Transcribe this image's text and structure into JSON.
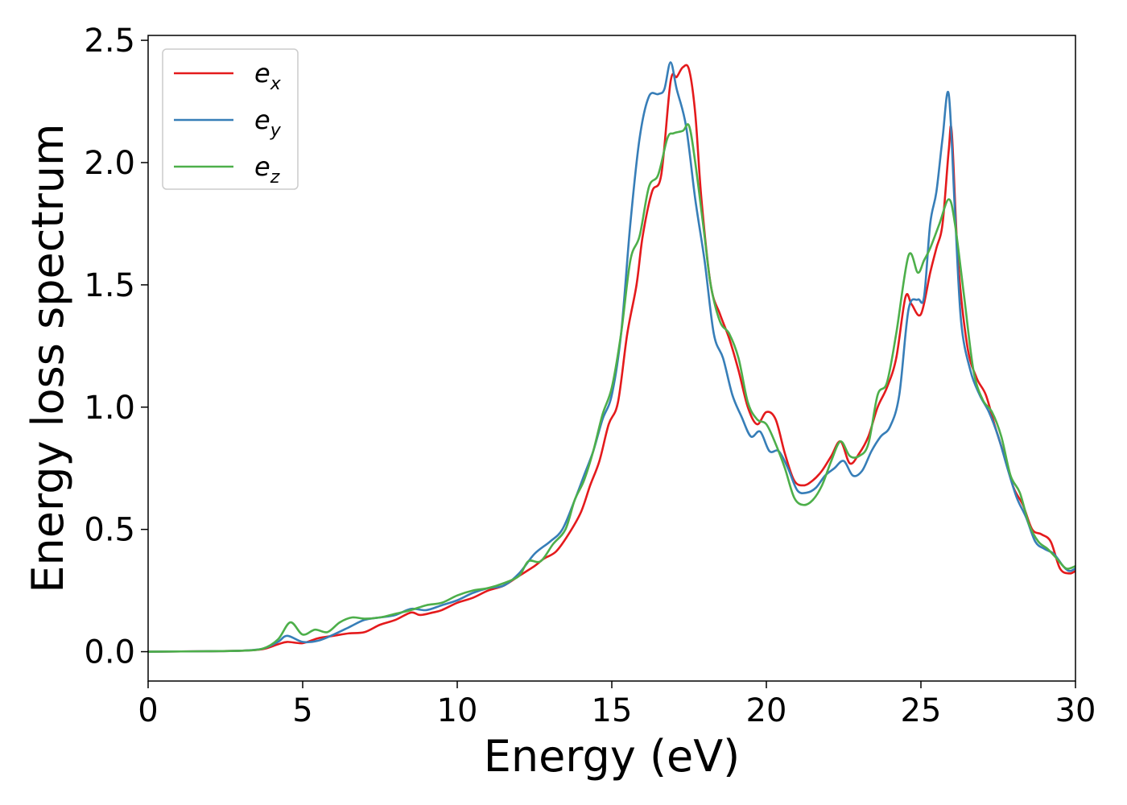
{
  "chart_data": {
    "type": "line",
    "title": "",
    "xlabel": "Energy (eV)",
    "ylabel": "Energy loss spectrum",
    "xlim": [
      0,
      30
    ],
    "ylim": [
      -0.12,
      2.52
    ],
    "xticks": [
      0,
      5,
      10,
      15,
      20,
      25,
      30
    ],
    "xtick_labels": [
      "0",
      "5",
      "10",
      "15",
      "20",
      "25",
      "30"
    ],
    "yticks": [
      0.0,
      0.5,
      1.0,
      1.5,
      2.0,
      2.5
    ],
    "ytick_labels": [
      "0.0",
      "0.5",
      "1.0",
      "1.5",
      "2.0",
      "2.5"
    ],
    "grid": false,
    "legend_position": "upper-left",
    "series": [
      {
        "name": "ex",
        "label_base": "e",
        "label_sub": "x",
        "color": "#e41a1c",
        "points": [
          [
            0,
            0
          ],
          [
            2,
            0.002
          ],
          [
            3,
            0.004
          ],
          [
            3.7,
            0.01
          ],
          [
            4.2,
            0.03
          ],
          [
            4.5,
            0.04
          ],
          [
            5,
            0.035
          ],
          [
            5.5,
            0.055
          ],
          [
            6,
            0.065
          ],
          [
            6.5,
            0.075
          ],
          [
            7,
            0.08
          ],
          [
            7.5,
            0.11
          ],
          [
            8,
            0.13
          ],
          [
            8.5,
            0.16
          ],
          [
            8.8,
            0.15
          ],
          [
            9.2,
            0.16
          ],
          [
            9.5,
            0.17
          ],
          [
            10,
            0.2
          ],
          [
            10.5,
            0.22
          ],
          [
            11,
            0.25
          ],
          [
            11.5,
            0.27
          ],
          [
            12,
            0.31
          ],
          [
            12.5,
            0.35
          ],
          [
            12.8,
            0.38
          ],
          [
            13.2,
            0.41
          ],
          [
            13.6,
            0.48
          ],
          [
            14,
            0.57
          ],
          [
            14.3,
            0.68
          ],
          [
            14.6,
            0.78
          ],
          [
            14.9,
            0.93
          ],
          [
            15.2,
            1.02
          ],
          [
            15.5,
            1.3
          ],
          [
            15.8,
            1.5
          ],
          [
            16,
            1.7
          ],
          [
            16.3,
            1.88
          ],
          [
            16.6,
            1.95
          ],
          [
            16.9,
            2.33
          ],
          [
            17.1,
            2.35
          ],
          [
            17.3,
            2.39
          ],
          [
            17.5,
            2.38
          ],
          [
            17.7,
            2.2
          ],
          [
            17.9,
            1.85
          ],
          [
            18.2,
            1.5
          ],
          [
            18.5,
            1.38
          ],
          [
            18.8,
            1.28
          ],
          [
            19.1,
            1.15
          ],
          [
            19.4,
            1.0
          ],
          [
            19.7,
            0.93
          ],
          [
            20,
            0.98
          ],
          [
            20.3,
            0.95
          ],
          [
            20.6,
            0.81
          ],
          [
            20.9,
            0.7
          ],
          [
            21.2,
            0.68
          ],
          [
            21.5,
            0.7
          ],
          [
            21.8,
            0.74
          ],
          [
            22.1,
            0.8
          ],
          [
            22.4,
            0.86
          ],
          [
            22.7,
            0.77
          ],
          [
            23,
            0.81
          ],
          [
            23.3,
            0.88
          ],
          [
            23.6,
            1.0
          ],
          [
            23.9,
            1.08
          ],
          [
            24.2,
            1.2
          ],
          [
            24.5,
            1.45
          ],
          [
            24.7,
            1.42
          ],
          [
            25,
            1.38
          ],
          [
            25.3,
            1.55
          ],
          [
            25.5,
            1.65
          ],
          [
            25.7,
            1.75
          ],
          [
            25.9,
            2.05
          ],
          [
            26,
            2.12
          ],
          [
            26.2,
            1.6
          ],
          [
            26.5,
            1.25
          ],
          [
            26.8,
            1.12
          ],
          [
            27.1,
            1.05
          ],
          [
            27.4,
            0.92
          ],
          [
            27.7,
            0.8
          ],
          [
            28,
            0.67
          ],
          [
            28.3,
            0.6
          ],
          [
            28.6,
            0.5
          ],
          [
            28.9,
            0.48
          ],
          [
            29.2,
            0.45
          ],
          [
            29.5,
            0.34
          ],
          [
            29.8,
            0.32
          ],
          [
            30,
            0.33
          ]
        ]
      },
      {
        "name": "ey",
        "label_base": "e",
        "label_sub": "y",
        "color": "#377eb8",
        "points": [
          [
            0,
            0
          ],
          [
            2,
            0.002
          ],
          [
            3,
            0.004
          ],
          [
            3.7,
            0.012
          ],
          [
            4.2,
            0.04
          ],
          [
            4.5,
            0.065
          ],
          [
            5,
            0.04
          ],
          [
            5.5,
            0.045
          ],
          [
            6,
            0.07
          ],
          [
            6.5,
            0.1
          ],
          [
            7,
            0.13
          ],
          [
            7.5,
            0.14
          ],
          [
            8,
            0.15
          ],
          [
            8.5,
            0.175
          ],
          [
            9,
            0.17
          ],
          [
            9.5,
            0.19
          ],
          [
            10,
            0.21
          ],
          [
            10.5,
            0.24
          ],
          [
            11,
            0.26
          ],
          [
            11.5,
            0.27
          ],
          [
            12,
            0.32
          ],
          [
            12.5,
            0.4
          ],
          [
            13,
            0.45
          ],
          [
            13.4,
            0.5
          ],
          [
            13.8,
            0.62
          ],
          [
            14.1,
            0.72
          ],
          [
            14.4,
            0.82
          ],
          [
            14.7,
            0.95
          ],
          [
            15,
            1.05
          ],
          [
            15.3,
            1.3
          ],
          [
            15.6,
            1.75
          ],
          [
            15.9,
            2.1
          ],
          [
            16.2,
            2.27
          ],
          [
            16.5,
            2.28
          ],
          [
            16.7,
            2.3
          ],
          [
            16.9,
            2.41
          ],
          [
            17.1,
            2.3
          ],
          [
            17.4,
            2.15
          ],
          [
            17.7,
            1.85
          ],
          [
            18,
            1.6
          ],
          [
            18.3,
            1.3
          ],
          [
            18.6,
            1.2
          ],
          [
            18.9,
            1.05
          ],
          [
            19.2,
            0.96
          ],
          [
            19.5,
            0.88
          ],
          [
            19.8,
            0.9
          ],
          [
            20.1,
            0.82
          ],
          [
            20.4,
            0.82
          ],
          [
            20.7,
            0.75
          ],
          [
            21,
            0.66
          ],
          [
            21.3,
            0.65
          ],
          [
            21.6,
            0.67
          ],
          [
            21.9,
            0.72
          ],
          [
            22.2,
            0.75
          ],
          [
            22.5,
            0.78
          ],
          [
            22.8,
            0.72
          ],
          [
            23.1,
            0.74
          ],
          [
            23.4,
            0.82
          ],
          [
            23.7,
            0.88
          ],
          [
            24,
            0.92
          ],
          [
            24.3,
            1.05
          ],
          [
            24.6,
            1.4
          ],
          [
            24.9,
            1.44
          ],
          [
            25.1,
            1.45
          ],
          [
            25.3,
            1.75
          ],
          [
            25.5,
            1.88
          ],
          [
            25.7,
            2.1
          ],
          [
            25.9,
            2.28
          ],
          [
            26.1,
            1.8
          ],
          [
            26.3,
            1.35
          ],
          [
            26.6,
            1.15
          ],
          [
            26.9,
            1.05
          ],
          [
            27.2,
            0.98
          ],
          [
            27.5,
            0.88
          ],
          [
            27.8,
            0.75
          ],
          [
            28.1,
            0.63
          ],
          [
            28.4,
            0.55
          ],
          [
            28.7,
            0.45
          ],
          [
            29,
            0.42
          ],
          [
            29.3,
            0.4
          ],
          [
            29.6,
            0.35
          ],
          [
            29.8,
            0.33
          ],
          [
            30,
            0.34
          ]
        ]
      },
      {
        "name": "ez",
        "label_base": "e",
        "label_sub": "z",
        "color": "#4daf4a",
        "points": [
          [
            0,
            0
          ],
          [
            2,
            0.002
          ],
          [
            3,
            0.004
          ],
          [
            3.7,
            0.012
          ],
          [
            4.2,
            0.05
          ],
          [
            4.6,
            0.12
          ],
          [
            5,
            0.07
          ],
          [
            5.4,
            0.09
          ],
          [
            5.8,
            0.08
          ],
          [
            6.2,
            0.12
          ],
          [
            6.6,
            0.14
          ],
          [
            7,
            0.135
          ],
          [
            7.5,
            0.14
          ],
          [
            8,
            0.155
          ],
          [
            8.5,
            0.17
          ],
          [
            9,
            0.19
          ],
          [
            9.5,
            0.2
          ],
          [
            10,
            0.23
          ],
          [
            10.5,
            0.25
          ],
          [
            11,
            0.26
          ],
          [
            11.5,
            0.28
          ],
          [
            12,
            0.31
          ],
          [
            12.3,
            0.37
          ],
          [
            12.7,
            0.37
          ],
          [
            13.1,
            0.44
          ],
          [
            13.5,
            0.5
          ],
          [
            13.8,
            0.62
          ],
          [
            14.1,
            0.7
          ],
          [
            14.4,
            0.82
          ],
          [
            14.7,
            0.97
          ],
          [
            15,
            1.08
          ],
          [
            15.3,
            1.3
          ],
          [
            15.6,
            1.6
          ],
          [
            15.9,
            1.7
          ],
          [
            16.2,
            1.9
          ],
          [
            16.5,
            1.95
          ],
          [
            16.8,
            2.1
          ],
          [
            17,
            2.12
          ],
          [
            17.3,
            2.13
          ],
          [
            17.5,
            2.15
          ],
          [
            17.7,
            2.0
          ],
          [
            18,
            1.7
          ],
          [
            18.2,
            1.5
          ],
          [
            18.5,
            1.35
          ],
          [
            18.8,
            1.3
          ],
          [
            19.1,
            1.2
          ],
          [
            19.4,
            1.02
          ],
          [
            19.7,
            0.95
          ],
          [
            20,
            0.93
          ],
          [
            20.3,
            0.85
          ],
          [
            20.6,
            0.75
          ],
          [
            20.9,
            0.63
          ],
          [
            21.2,
            0.6
          ],
          [
            21.5,
            0.62
          ],
          [
            21.8,
            0.68
          ],
          [
            22.1,
            0.78
          ],
          [
            22.4,
            0.86
          ],
          [
            22.7,
            0.8
          ],
          [
            23,
            0.8
          ],
          [
            23.3,
            0.85
          ],
          [
            23.6,
            1.05
          ],
          [
            23.9,
            1.1
          ],
          [
            24.2,
            1.3
          ],
          [
            24.6,
            1.62
          ],
          [
            24.9,
            1.55
          ],
          [
            25.1,
            1.6
          ],
          [
            25.3,
            1.65
          ],
          [
            25.6,
            1.75
          ],
          [
            25.9,
            1.85
          ],
          [
            26.1,
            1.75
          ],
          [
            26.4,
            1.45
          ],
          [
            26.7,
            1.15
          ],
          [
            27,
            1.03
          ],
          [
            27.3,
            0.98
          ],
          [
            27.6,
            0.88
          ],
          [
            27.9,
            0.72
          ],
          [
            28.2,
            0.65
          ],
          [
            28.5,
            0.52
          ],
          [
            28.8,
            0.45
          ],
          [
            29.1,
            0.42
          ],
          [
            29.4,
            0.38
          ],
          [
            29.7,
            0.34
          ],
          [
            30,
            0.35
          ]
        ]
      }
    ]
  }
}
